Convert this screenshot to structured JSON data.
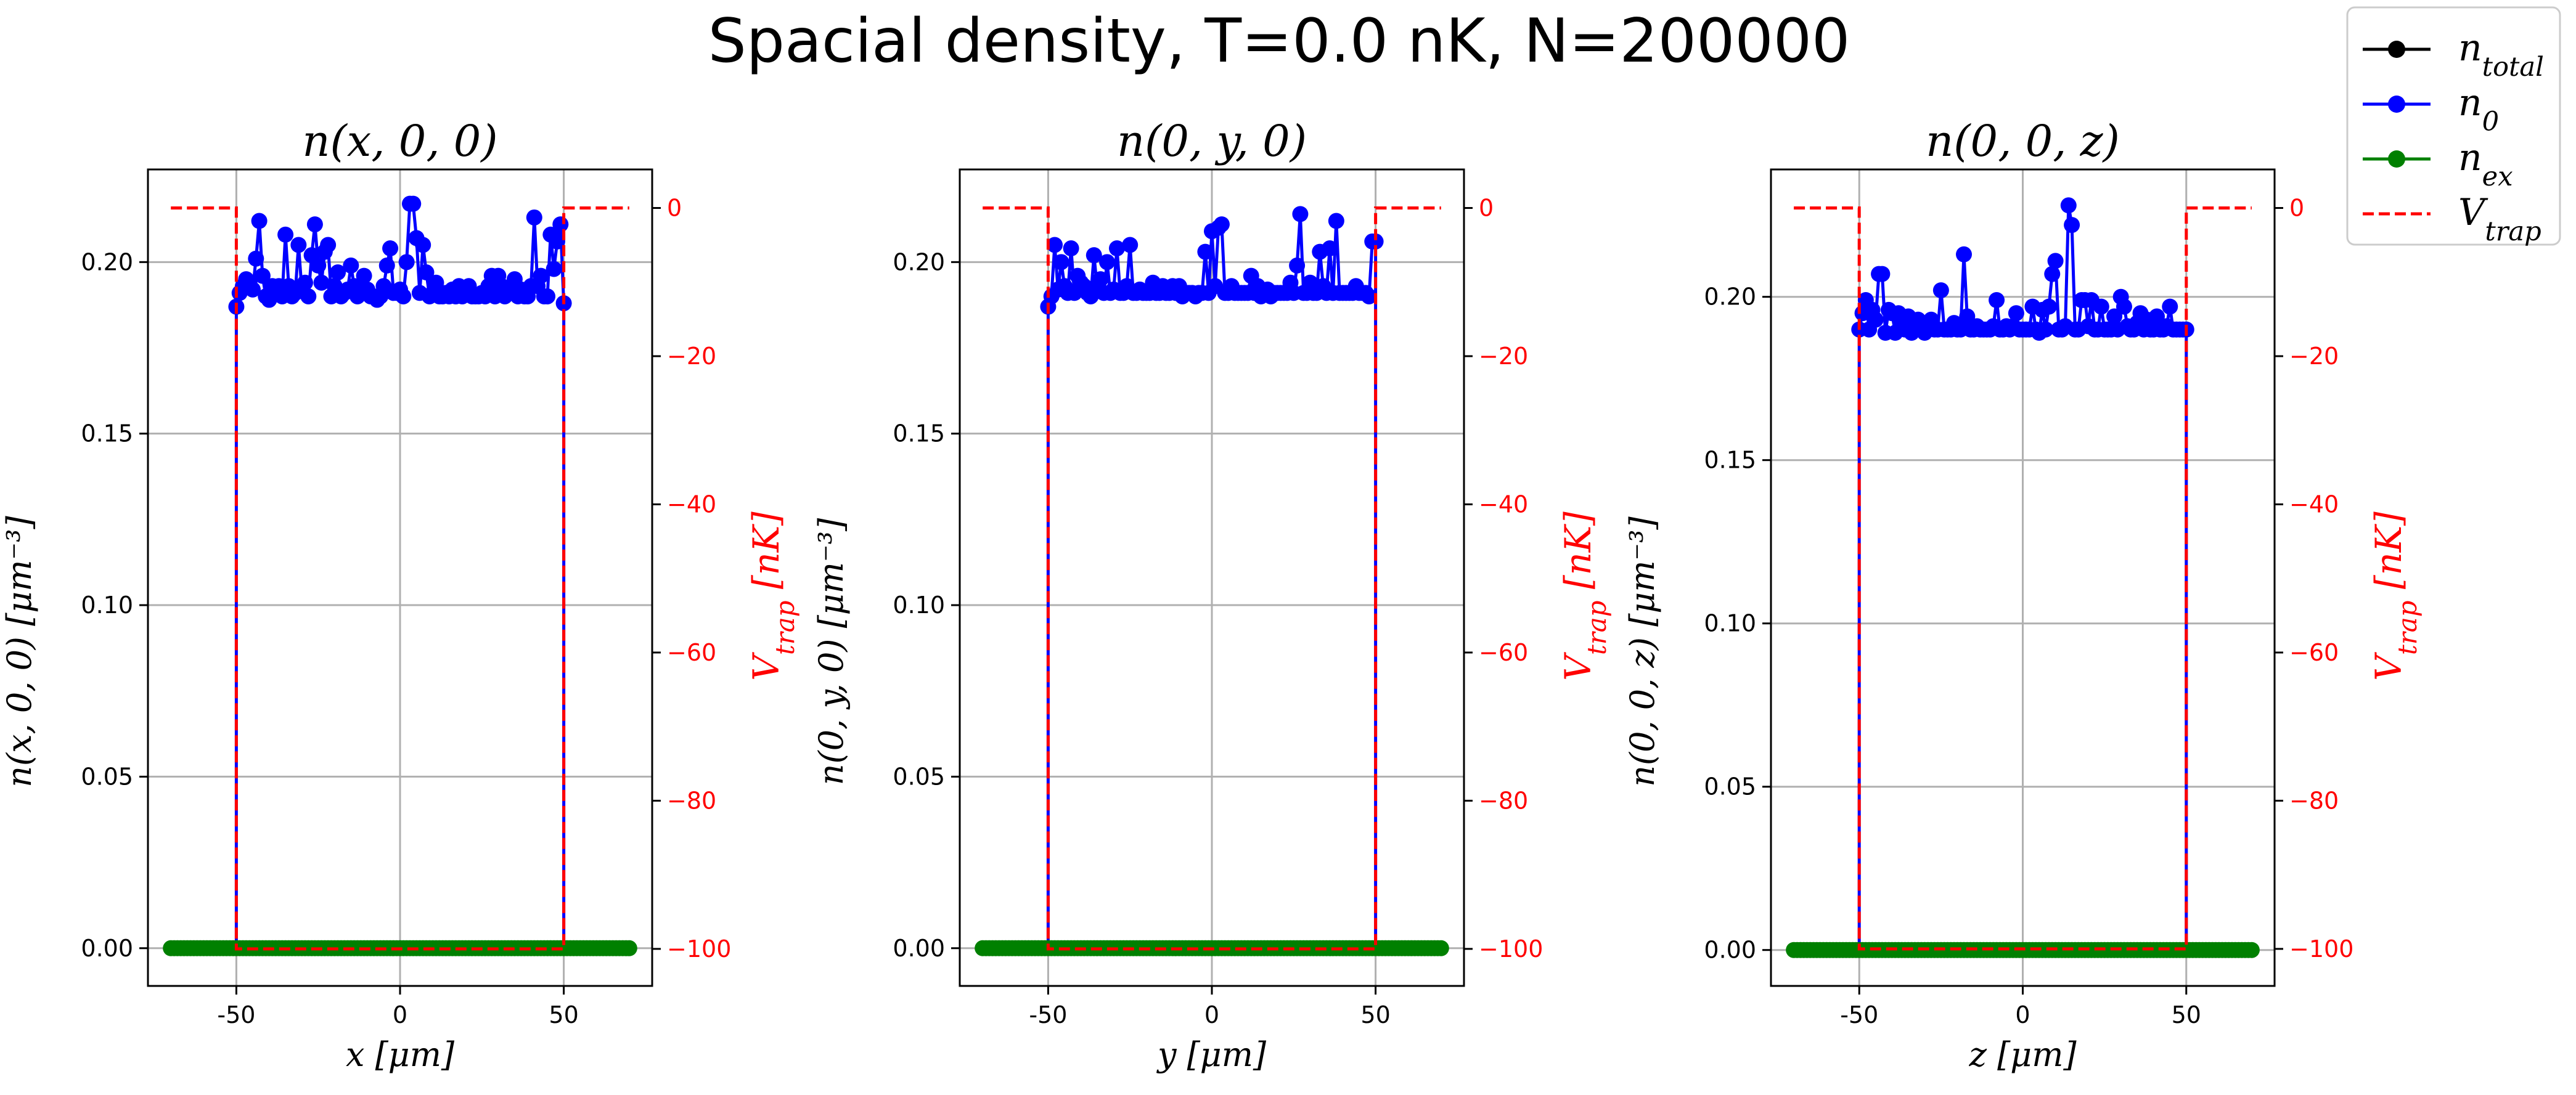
{
  "figure": {
    "suptitle": "Spacial density, T=0.0 nK, N=200000"
  },
  "legend": {
    "placement": "top-right",
    "entries": [
      {
        "base": "n",
        "sub": "total",
        "color": "#000000",
        "style": "line-marker"
      },
      {
        "base": "n",
        "sub": "0",
        "color": "#0000ff",
        "style": "line-marker"
      },
      {
        "base": "n",
        "sub": "ex",
        "color": "#008000",
        "style": "line-marker"
      },
      {
        "base": "V",
        "sub": "trap",
        "color": "#ff0000",
        "style": "dashed"
      }
    ]
  },
  "colors": {
    "n0": "#0000ff",
    "nex": "#008000",
    "ntotal": "#000000",
    "vtrap": "#ff0000",
    "grid": "#b0b0b0"
  },
  "chart_data": [
    {
      "type": "line",
      "title": "n(x, 0, 0)",
      "xlabel": "x [μm]",
      "ylabel": "n(x, 0, 0) [μm⁻³]",
      "y2label": "V_trap [nK]",
      "xlim": [
        -77,
        77
      ],
      "ylim": [
        -0.011,
        0.227
      ],
      "y2lim": [
        -105,
        5.2
      ],
      "xticks": [
        "-50",
        "0",
        "50"
      ],
      "xtick_values": [
        -50,
        0,
        50
      ],
      "yticks": [
        "0.00",
        "0.05",
        "0.10",
        "0.15",
        "0.20"
      ],
      "ytick_values": [
        0,
        0.05,
        0.1,
        0.15,
        0.2
      ],
      "y2ticks": [
        "0",
        "−20",
        "−40",
        "−60",
        "−80",
        "−100"
      ],
      "y2tick_values": [
        0,
        -20,
        -40,
        -60,
        -80,
        -100
      ],
      "grid": true,
      "series": [
        {
          "name": "n_0",
          "x": [
            -50,
            -49,
            -48,
            -47,
            -46,
            -45,
            -44,
            -43,
            -42,
            -41,
            -40,
            -39,
            -38,
            -37,
            -36,
            -35,
            -34,
            -33,
            -32,
            -31,
            -30,
            -29,
            -28,
            -27,
            -26,
            -25,
            -24,
            -23,
            -22,
            -21,
            -20,
            -19,
            -18,
            -17,
            -16,
            -15,
            -14,
            -13,
            -12,
            -11,
            -10,
            -9,
            -8,
            -7,
            -6,
            -5,
            -4,
            -3,
            -2,
            -1,
            0,
            1,
            2,
            3,
            4,
            5,
            6,
            7,
            8,
            9,
            10,
            11,
            12,
            13,
            14,
            15,
            16,
            17,
            18,
            19,
            20,
            21,
            22,
            23,
            24,
            25,
            26,
            27,
            28,
            29,
            30,
            31,
            32,
            33,
            34,
            35,
            36,
            37,
            38,
            39,
            40,
            41,
            42,
            43,
            44,
            45,
            46,
            47,
            48,
            49,
            50
          ],
          "y": [
            0.187,
            0.191,
            0.193,
            0.195,
            0.194,
            0.192,
            0.201,
            0.212,
            0.196,
            0.19,
            0.189,
            0.193,
            0.191,
            0.193,
            0.19,
            0.208,
            0.193,
            0.19,
            0.191,
            0.205,
            0.192,
            0.194,
            0.19,
            0.202,
            0.211,
            0.199,
            0.194,
            0.203,
            0.205,
            0.19,
            0.193,
            0.197,
            0.19,
            0.191,
            0.192,
            0.199,
            0.193,
            0.19,
            0.191,
            0.196,
            0.192,
            0.19,
            0.19,
            0.189,
            0.19,
            0.193,
            0.199,
            0.204,
            0.191,
            0.191,
            0.192,
            0.19,
            0.2,
            0.217,
            0.217,
            0.207,
            0.191,
            0.205,
            0.197,
            0.19,
            0.191,
            0.194,
            0.19,
            0.19,
            0.191,
            0.19,
            0.192,
            0.19,
            0.193,
            0.19,
            0.191,
            0.193,
            0.19,
            0.19,
            0.19,
            0.191,
            0.19,
            0.193,
            0.196,
            0.19,
            0.196,
            0.193,
            0.19,
            0.191,
            0.193,
            0.195,
            0.19,
            0.192,
            0.19,
            0.19,
            0.193,
            0.213,
            0.193,
            0.196,
            0.19,
            0.19,
            0.208,
            0.198,
            0.206,
            0.211,
            0.188
          ]
        },
        {
          "name": "n_ex",
          "x": [
            -70,
            -60,
            -50,
            -40,
            -30,
            -20,
            -10,
            0,
            10,
            20,
            30,
            40,
            50,
            60,
            70
          ],
          "y": [
            0,
            0,
            0,
            0,
            0,
            0,
            0,
            0,
            0,
            0,
            0,
            0,
            0,
            0,
            0
          ]
        },
        {
          "name": "V_trap",
          "axis": "right",
          "x": [
            -70,
            -50,
            -50,
            50,
            50,
            70
          ],
          "y": [
            0,
            0,
            -100,
            -100,
            0,
            0
          ]
        }
      ]
    },
    {
      "type": "line",
      "title": "n(0, y, 0)",
      "xlabel": "y [μm]",
      "ylabel": "n(0, y, 0) [μm⁻³]",
      "y2label": "V_trap [nK]",
      "xlim": [
        -77,
        77
      ],
      "ylim": [
        -0.011,
        0.227
      ],
      "y2lim": [
        -105,
        5.2
      ],
      "xticks": [
        "-50",
        "0",
        "50"
      ],
      "xtick_values": [
        -50,
        0,
        50
      ],
      "yticks": [
        "0.00",
        "0.05",
        "0.10",
        "0.15",
        "0.20"
      ],
      "ytick_values": [
        0,
        0.05,
        0.1,
        0.15,
        0.2
      ],
      "y2ticks": [
        "0",
        "−20",
        "−40",
        "−60",
        "−80",
        "−100"
      ],
      "y2tick_values": [
        0,
        -20,
        -40,
        -60,
        -80,
        -100
      ],
      "grid": true,
      "series": [
        {
          "name": "n_0",
          "x": [
            -50,
            -49,
            -48,
            -47,
            -46,
            -45,
            -44,
            -43,
            -42,
            -41,
            -40,
            -39,
            -38,
            -37,
            -36,
            -35,
            -34,
            -33,
            -32,
            -31,
            -30,
            -29,
            -28,
            -27,
            -26,
            -25,
            -24,
            -23,
            -22,
            -21,
            -20,
            -19,
            -18,
            -17,
            -16,
            -15,
            -14,
            -13,
            -12,
            -11,
            -10,
            -9,
            -8,
            -7,
            -6,
            -5,
            -4,
            -3,
            -2,
            -1,
            0,
            1,
            2,
            3,
            4,
            5,
            6,
            7,
            8,
            9,
            10,
            11,
            12,
            13,
            14,
            15,
            16,
            17,
            18,
            19,
            20,
            21,
            22,
            23,
            24,
            25,
            26,
            27,
            28,
            29,
            30,
            31,
            32,
            33,
            34,
            35,
            36,
            37,
            38,
            39,
            40,
            41,
            42,
            43,
            44,
            45,
            46,
            47,
            48,
            49,
            50
          ],
          "y": [
            0.187,
            0.19,
            0.205,
            0.192,
            0.2,
            0.193,
            0.191,
            0.204,
            0.191,
            0.196,
            0.194,
            0.193,
            0.191,
            0.19,
            0.202,
            0.192,
            0.195,
            0.191,
            0.2,
            0.191,
            0.192,
            0.204,
            0.191,
            0.191,
            0.193,
            0.205,
            0.191,
            0.191,
            0.192,
            0.191,
            0.191,
            0.191,
            0.194,
            0.191,
            0.191,
            0.193,
            0.191,
            0.191,
            0.193,
            0.191,
            0.193,
            0.19,
            0.191,
            0.191,
            0.191,
            0.19,
            0.191,
            0.191,
            0.203,
            0.191,
            0.209,
            0.193,
            0.21,
            0.211,
            0.191,
            0.191,
            0.193,
            0.191,
            0.191,
            0.191,
            0.191,
            0.191,
            0.196,
            0.191,
            0.193,
            0.19,
            0.191,
            0.192,
            0.19,
            0.191,
            0.191,
            0.191,
            0.191,
            0.191,
            0.194,
            0.191,
            0.199,
            0.214,
            0.191,
            0.191,
            0.194,
            0.191,
            0.191,
            0.203,
            0.193,
            0.191,
            0.204,
            0.191,
            0.212,
            0.191,
            0.191,
            0.191,
            0.191,
            0.191,
            0.193,
            0.191,
            0.191,
            0.191,
            0.19,
            0.206,
            0.206
          ]
        },
        {
          "name": "n_ex",
          "x": [
            -70,
            -60,
            -50,
            -40,
            -30,
            -20,
            -10,
            0,
            10,
            20,
            30,
            40,
            50,
            60,
            70
          ],
          "y": [
            0,
            0,
            0,
            0,
            0,
            0,
            0,
            0,
            0,
            0,
            0,
            0,
            0,
            0,
            0
          ]
        },
        {
          "name": "V_trap",
          "axis": "right",
          "x": [
            -70,
            -50,
            -50,
            50,
            50,
            70
          ],
          "y": [
            0,
            0,
            -100,
            -100,
            0,
            0
          ]
        }
      ]
    },
    {
      "type": "line",
      "title": "n(0, 0, z)",
      "xlabel": "z [μm]",
      "ylabel": "n(0, 0, z) [μm⁻³]",
      "y2label": "V_trap [nK]",
      "xlim": [
        -77,
        77
      ],
      "ylim": [
        -0.011,
        0.239
      ],
      "y2lim": [
        -105,
        5.2
      ],
      "xticks": [
        "-50",
        "0",
        "50"
      ],
      "xtick_values": [
        -50,
        0,
        50
      ],
      "yticks": [
        "0.00",
        "0.05",
        "0.10",
        "0.15",
        "0.20"
      ],
      "ytick_values": [
        0,
        0.05,
        0.1,
        0.15,
        0.2
      ],
      "y2ticks": [
        "0",
        "−20",
        "−40",
        "−60",
        "−80",
        "−100"
      ],
      "y2tick_values": [
        0,
        -20,
        -40,
        -60,
        -80,
        -100
      ],
      "grid": true,
      "series": [
        {
          "name": "n_0",
          "x": [
            -50,
            -49,
            -48,
            -47,
            -46,
            -45,
            -44,
            -43,
            -42,
            -41,
            -40,
            -39,
            -38,
            -37,
            -36,
            -35,
            -34,
            -33,
            -32,
            -31,
            -30,
            -29,
            -28,
            -27,
            -26,
            -25,
            -24,
            -23,
            -22,
            -21,
            -20,
            -19,
            -18,
            -17,
            -16,
            -15,
            -14,
            -13,
            -12,
            -11,
            -10,
            -9,
            -8,
            -7,
            -6,
            -5,
            -4,
            -3,
            -2,
            -1,
            0,
            1,
            2,
            3,
            4,
            5,
            6,
            7,
            8,
            9,
            10,
            11,
            12,
            13,
            14,
            15,
            16,
            17,
            18,
            19,
            20,
            21,
            22,
            23,
            24,
            25,
            26,
            27,
            28,
            29,
            30,
            31,
            32,
            33,
            34,
            35,
            36,
            37,
            38,
            39,
            40,
            41,
            42,
            43,
            44,
            45,
            46,
            47,
            48,
            49,
            50
          ],
          "y": [
            0.19,
            0.195,
            0.199,
            0.19,
            0.196,
            0.193,
            0.207,
            0.207,
            0.189,
            0.196,
            0.195,
            0.189,
            0.195,
            0.192,
            0.19,
            0.194,
            0.189,
            0.192,
            0.193,
            0.19,
            0.189,
            0.19,
            0.193,
            0.19,
            0.19,
            0.202,
            0.19,
            0.19,
            0.19,
            0.192,
            0.19,
            0.19,
            0.213,
            0.194,
            0.19,
            0.19,
            0.191,
            0.19,
            0.19,
            0.19,
            0.19,
            0.191,
            0.199,
            0.19,
            0.19,
            0.191,
            0.19,
            0.191,
            0.195,
            0.19,
            0.19,
            0.19,
            0.19,
            0.197,
            0.19,
            0.189,
            0.196,
            0.19,
            0.197,
            0.207,
            0.211,
            0.19,
            0.19,
            0.191,
            0.228,
            0.222,
            0.19,
            0.19,
            0.199,
            0.199,
            0.191,
            0.199,
            0.19,
            0.19,
            0.197,
            0.19,
            0.19,
            0.19,
            0.194,
            0.19,
            0.2,
            0.197,
            0.191,
            0.19,
            0.19,
            0.192,
            0.195,
            0.19,
            0.193,
            0.19,
            0.19,
            0.194,
            0.19,
            0.19,
            0.191,
            0.197,
            0.19,
            0.19,
            0.19,
            0.19,
            0.19
          ]
        },
        {
          "name": "n_ex",
          "x": [
            -70,
            -60,
            -50,
            -40,
            -30,
            -20,
            -10,
            0,
            10,
            20,
            30,
            40,
            50,
            60,
            70
          ],
          "y": [
            0,
            0,
            0,
            0,
            0,
            0,
            0,
            0,
            0,
            0,
            0,
            0,
            0,
            0,
            0
          ]
        },
        {
          "name": "V_trap",
          "axis": "right",
          "x": [
            -70,
            -50,
            -50,
            50,
            50,
            70
          ],
          "y": [
            0,
            0,
            -100,
            -100,
            0,
            0
          ]
        }
      ]
    }
  ]
}
